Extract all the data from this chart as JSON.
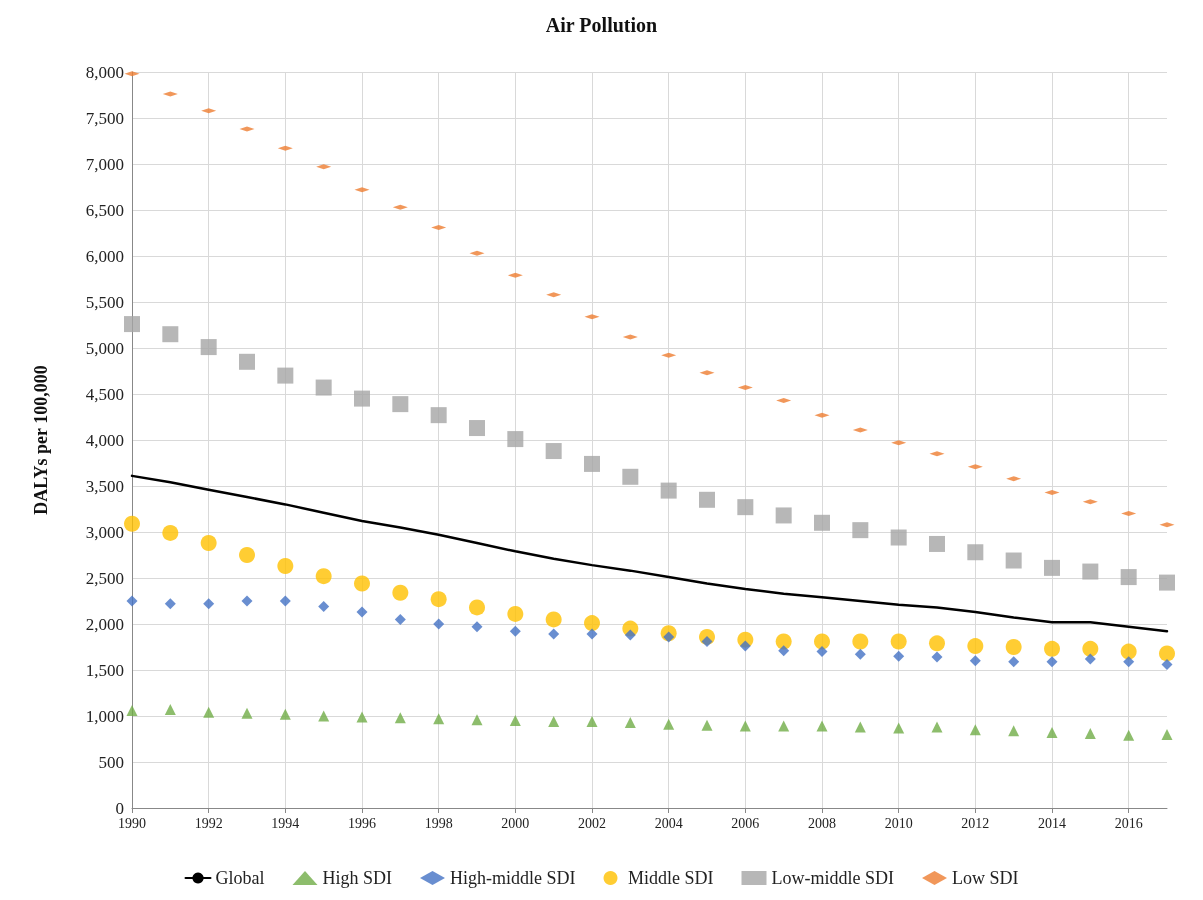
{
  "chart_data": {
    "type": "scatter",
    "title": "Air Pollution",
    "ylabel": "DALYs per 100,000",
    "x": [
      1990,
      1991,
      1992,
      1993,
      1994,
      1995,
      1996,
      1997,
      1998,
      1999,
      2000,
      2001,
      2002,
      2003,
      2004,
      2005,
      2006,
      2007,
      2008,
      2009,
      2010,
      2011,
      2012,
      2013,
      2014,
      2015,
      2016,
      2017
    ],
    "xlim": [
      1990,
      2017
    ],
    "xticks": [
      1990,
      1992,
      1994,
      1996,
      1998,
      2000,
      2002,
      2004,
      2006,
      2008,
      2010,
      2012,
      2014,
      2016
    ],
    "ylim": [
      0,
      8000
    ],
    "yticks": [
      0,
      500,
      {
        "value": 1000,
        "label": "1,000"
      },
      {
        "value": 1500,
        "label": "1,500"
      },
      {
        "value": 2000,
        "label": "2,000"
      },
      {
        "value": 2500,
        "label": "2,500"
      },
      {
        "value": 3000,
        "label": "3,000"
      },
      {
        "value": 3500,
        "label": "3,500"
      },
      {
        "value": 4000,
        "label": "4,000"
      },
      {
        "value": 4500,
        "label": "4,500"
      },
      {
        "value": 5000,
        "label": "5,000"
      },
      {
        "value": 5500,
        "label": "5,500"
      },
      {
        "value": 6000,
        "label": "6,000"
      },
      {
        "value": 6500,
        "label": "6,500"
      },
      {
        "value": 7000,
        "label": "7,000"
      },
      {
        "value": 7500,
        "label": "7,500"
      },
      {
        "value": 8000,
        "label": "8,000"
      }
    ],
    "grid": true,
    "legend": "bottom",
    "series": [
      {
        "name": "Global",
        "type": "line",
        "marker": "none",
        "line_style": "solid",
        "color": "#000000",
        "values": [
          3610,
          3540,
          3460,
          3380,
          3300,
          3210,
          3120,
          3050,
          2970,
          2880,
          2790,
          2710,
          2640,
          2580,
          2510,
          2440,
          2380,
          2330,
          2290,
          2250,
          2210,
          2180,
          2130,
          2070,
          2020,
          2020,
          1970,
          1920
        ]
      },
      {
        "name": "High SDI",
        "marker": "triangle",
        "color": "#70ad47",
        "values": [
          1060,
          1070,
          1040,
          1030,
          1020,
          1000,
          990,
          980,
          970,
          960,
          950,
          940,
          940,
          930,
          910,
          900,
          890,
          890,
          890,
          880,
          870,
          880,
          850,
          840,
          820,
          810,
          790,
          800
        ]
      },
      {
        "name": "High-middle SDI",
        "marker": "diamond",
        "color": "#4472c4",
        "values": [
          2250,
          2220,
          2220,
          2250,
          2250,
          2190,
          2130,
          2050,
          2000,
          1970,
          1920,
          1890,
          1890,
          1880,
          1860,
          1810,
          1760,
          1710,
          1700,
          1670,
          1650,
          1640,
          1600,
          1590,
          1590,
          1620,
          1590,
          1560
        ]
      },
      {
        "name": "Middle SDI",
        "marker": "circle",
        "color": "#ffc000",
        "values": [
          3090,
          2990,
          2880,
          2750,
          2630,
          2520,
          2440,
          2340,
          2270,
          2180,
          2110,
          2050,
          2010,
          1950,
          1900,
          1860,
          1830,
          1810,
          1810,
          1810,
          1810,
          1790,
          1760,
          1750,
          1730,
          1730,
          1700,
          1680
        ]
      },
      {
        "name": "Low-middle SDI",
        "marker": "square",
        "color": "#a5a5a5",
        "values": [
          5260,
          5150,
          5010,
          4850,
          4700,
          4570,
          4450,
          4390,
          4270,
          4130,
          4010,
          3880,
          3740,
          3600,
          3450,
          3350,
          3270,
          3180,
          3100,
          3020,
          2940,
          2870,
          2780,
          2690,
          2610,
          2570,
          2510,
          2450
        ]
      },
      {
        "name": "Low SDI",
        "color": "#ed7d31",
        "values": [
          7980,
          7760,
          7580,
          7380,
          7170,
          6970,
          6720,
          6530,
          6310,
          6030,
          5790,
          5580,
          5340,
          5120,
          4920,
          4730,
          4570,
          4430,
          4270,
          4110,
          3970,
          3850,
          3710,
          3580,
          3430,
          3330,
          3200,
          3080
        ]
      }
    ]
  }
}
